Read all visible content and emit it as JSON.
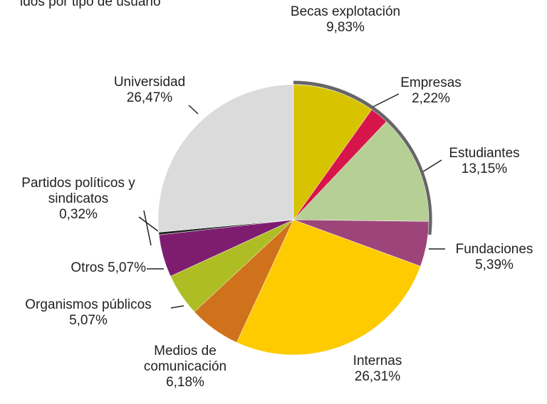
{
  "chart_data": {
    "type": "pie",
    "title": "idos por tipo de usuario",
    "categories": [
      "Becas explotación",
      "Empresas",
      "Estudiantes",
      "Fundaciones",
      "Internas",
      "Medios de comunicación",
      "Organismos públicos",
      "Otros",
      "Partidos políticos y sindicatos",
      "Universidad"
    ],
    "values": [
      9.83,
      2.22,
      13.15,
      5.39,
      26.31,
      6.18,
      5.07,
      5.07,
      0.32,
      26.47
    ],
    "value_labels": [
      "9,83%",
      "2,22%",
      "13,15%",
      "5,39%",
      "26,31%",
      "6,18%",
      "5,07%",
      "5,07%",
      "0,32%",
      "26,47%"
    ],
    "colors": [
      "#d8c300",
      "#d7154b",
      "#b6cf95",
      "#9d447a",
      "#fdcb00",
      "#d0721b",
      "#afbd25",
      "#7e1d70",
      "#222222",
      "#dcdbdb"
    ]
  }
}
